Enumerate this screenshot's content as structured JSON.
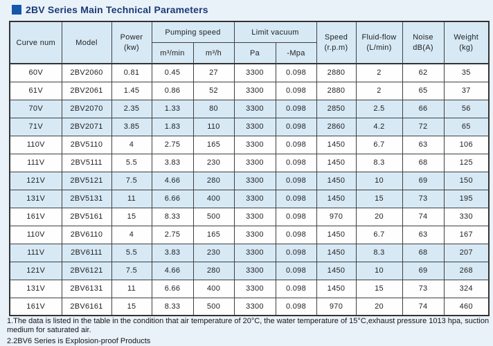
{
  "title": "2BV Series Main Technical Parameters",
  "table": {
    "headers": {
      "curve_num": "Curve num",
      "model": "Model",
      "power": [
        "Power",
        "(kw)"
      ],
      "pumping_speed": "Pumping speed",
      "pumping_speed_sub": [
        "m³/min",
        "m³/h"
      ],
      "limit_vacuum": "Limit vacuum",
      "limit_vacuum_sub": [
        "Pa",
        "-Mpa"
      ],
      "speed": [
        "Speed",
        "(r.p.m)"
      ],
      "fluid_flow": [
        "Fluid-flow",
        "(L/min)"
      ],
      "noise": [
        "Noise",
        "dB(A)"
      ],
      "weight": [
        "Weight",
        "(kg)"
      ]
    },
    "rows": [
      [
        "60V",
        "2BV2060",
        "0.81",
        "0.45",
        "27",
        "3300",
        "0.098",
        "2880",
        "2",
        "62",
        "35"
      ],
      [
        "61V",
        "2BV2061",
        "1.45",
        "0.86",
        "52",
        "3300",
        "0.098",
        "2880",
        "2",
        "65",
        "37"
      ],
      [
        "70V",
        "2BV2070",
        "2.35",
        "1.33",
        "80",
        "3300",
        "0.098",
        "2850",
        "2.5",
        "66",
        "56"
      ],
      [
        "71V",
        "2BV2071",
        "3.85",
        "1.83",
        "110",
        "3300",
        "0.098",
        "2860",
        "4.2",
        "72",
        "65"
      ],
      [
        "110V",
        "2BV5110",
        "4",
        "2.75",
        "165",
        "3300",
        "0.098",
        "1450",
        "6.7",
        "63",
        "106"
      ],
      [
        "111V",
        "2BV5111",
        "5.5",
        "3.83",
        "230",
        "3300",
        "0.098",
        "1450",
        "8.3",
        "68",
        "125"
      ],
      [
        "121V",
        "2BV5121",
        "7.5",
        "4.66",
        "280",
        "3300",
        "0.098",
        "1450",
        "10",
        "69",
        "150"
      ],
      [
        "131V",
        "2BV5131",
        "11",
        "6.66",
        "400",
        "3300",
        "0.098",
        "1450",
        "15",
        "73",
        "195"
      ],
      [
        "161V",
        "2BV5161",
        "15",
        "8.33",
        "500",
        "3300",
        "0.098",
        "970",
        "20",
        "74",
        "330"
      ],
      [
        "110V",
        "2BV6110",
        "4",
        "2.75",
        "165",
        "3300",
        "0.098",
        "1450",
        "6.7",
        "63",
        "167"
      ],
      [
        "111V",
        "2BV6111",
        "5.5",
        "3.83",
        "230",
        "3300",
        "0.098",
        "1450",
        "8.3",
        "68",
        "207"
      ],
      [
        "121V",
        "2BV6121",
        "7.5",
        "4.66",
        "280",
        "3300",
        "0.098",
        "1450",
        "10",
        "69",
        "268"
      ],
      [
        "131V",
        "2BV6131",
        "11",
        "6.66",
        "400",
        "3300",
        "0.098",
        "1450",
        "15",
        "73",
        "324"
      ],
      [
        "161V",
        "2BV6161",
        "15",
        "8.33",
        "500",
        "3300",
        "0.098",
        "970",
        "20",
        "74",
        "460"
      ]
    ]
  },
  "notes": [
    "1.The data is listed in the table in the condition that air temperature of 20°C, the water temperature of 15°C,exhaust pressure 1013 hpa, suction medium for saturated air.",
    "2.2BV6 Series is Explosion-proof Products"
  ],
  "colors": {
    "accent_blue": "#1557ab",
    "title_navy": "#1b3a75",
    "header_bg": "#d7e9f5",
    "shaded_row_bg": "#d7e9f5",
    "page_bg": "#eaf2f9",
    "border": "#3f3f3f"
  }
}
